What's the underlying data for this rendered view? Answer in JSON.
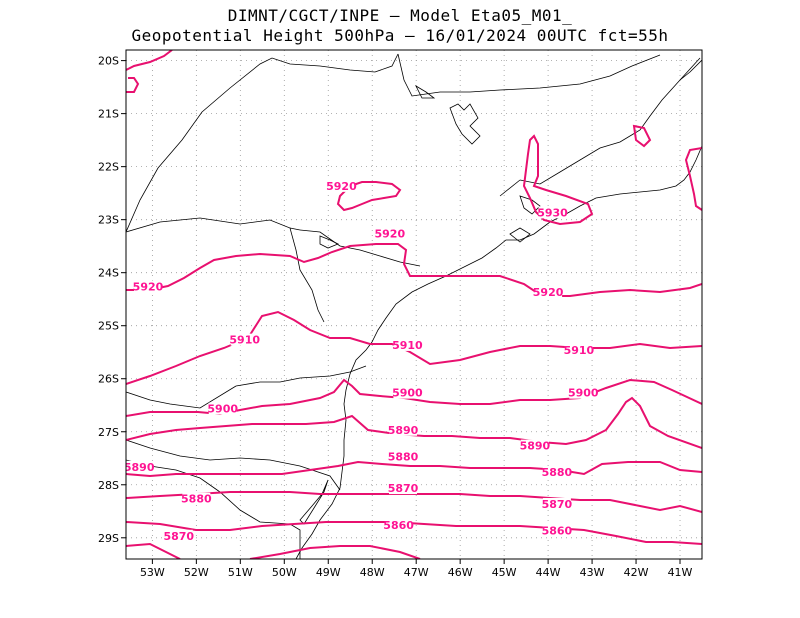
{
  "title": {
    "line1": "DIMNT/CGCT/INPE –  Model Eta05_M01_",
    "line2": "Geopotential Height 500hPa –  16/01/2024 00UTC fct=55h"
  },
  "colors": {
    "contour": "#e8106f",
    "contour_label": "#ff1493",
    "coast": "#000000",
    "grid": "#999999"
  },
  "map": {
    "lon_range": [
      -53.6,
      -40.5
    ],
    "lat_range": [
      -29.4,
      -19.8
    ],
    "lon_ticks": [
      {
        "v": -53,
        "label": "53W"
      },
      {
        "v": -52,
        "label": "52W"
      },
      {
        "v": -51,
        "label": "51W"
      },
      {
        "v": -50,
        "label": "50W"
      },
      {
        "v": -49,
        "label": "49W"
      },
      {
        "v": -48,
        "label": "48W"
      },
      {
        "v": -47,
        "label": "47W"
      },
      {
        "v": -46,
        "label": "46W"
      },
      {
        "v": -45,
        "label": "45W"
      },
      {
        "v": -44,
        "label": "44W"
      },
      {
        "v": -43,
        "label": "43W"
      },
      {
        "v": -42,
        "label": "42W"
      },
      {
        "v": -41,
        "label": "41W"
      }
    ],
    "lat_ticks": [
      {
        "v": -20,
        "label": "20S"
      },
      {
        "v": -21,
        "label": "21S"
      },
      {
        "v": -22,
        "label": "22S"
      },
      {
        "v": -23,
        "label": "23S"
      },
      {
        "v": -24,
        "label": "24S"
      },
      {
        "v": -25,
        "label": "25S"
      },
      {
        "v": -26,
        "label": "26S"
      },
      {
        "v": -27,
        "label": "27S"
      },
      {
        "v": -28,
        "label": "28S"
      },
      {
        "v": -29,
        "label": "29S"
      }
    ],
    "contour_labels": [
      {
        "text": "5920",
        "lon": -48.7,
        "lat": -22.4
      },
      {
        "text": "5920",
        "lon": -47.6,
        "lat": -23.3
      },
      {
        "text": "5920",
        "lon": -53.1,
        "lat": -24.3
      },
      {
        "text": "5920",
        "lon": -44.0,
        "lat": -24.4
      },
      {
        "text": "5930",
        "lon": -43.9,
        "lat": -22.9
      },
      {
        "text": "5910",
        "lon": -50.9,
        "lat": -25.3
      },
      {
        "text": "5910",
        "lon": -47.2,
        "lat": -25.4
      },
      {
        "text": "5910",
        "lon": -43.3,
        "lat": -25.5
      },
      {
        "text": "5900",
        "lon": -51.4,
        "lat": -26.6
      },
      {
        "text": "5900",
        "lon": -47.2,
        "lat": -26.3
      },
      {
        "text": "5900",
        "lon": -43.2,
        "lat": -26.3
      },
      {
        "text": "5890",
        "lon": -47.3,
        "lat": -27.0
      },
      {
        "text": "5890",
        "lon": -53.3,
        "lat": -27.7
      },
      {
        "text": "5890",
        "lon": -44.3,
        "lat": -27.3
      },
      {
        "text": "5880",
        "lon": -47.3,
        "lat": -27.5
      },
      {
        "text": "5880",
        "lon": -52.0,
        "lat": -28.3
      },
      {
        "text": "5880",
        "lon": -43.8,
        "lat": -27.8
      },
      {
        "text": "5870",
        "lon": -47.3,
        "lat": -28.1
      },
      {
        "text": "5870",
        "lon": -52.4,
        "lat": -29.0
      },
      {
        "text": "5870",
        "lon": -43.8,
        "lat": -28.4
      },
      {
        "text": "5860",
        "lon": -47.4,
        "lat": -28.8
      },
      {
        "text": "5860",
        "lon": -43.8,
        "lat": -28.9
      }
    ]
  }
}
